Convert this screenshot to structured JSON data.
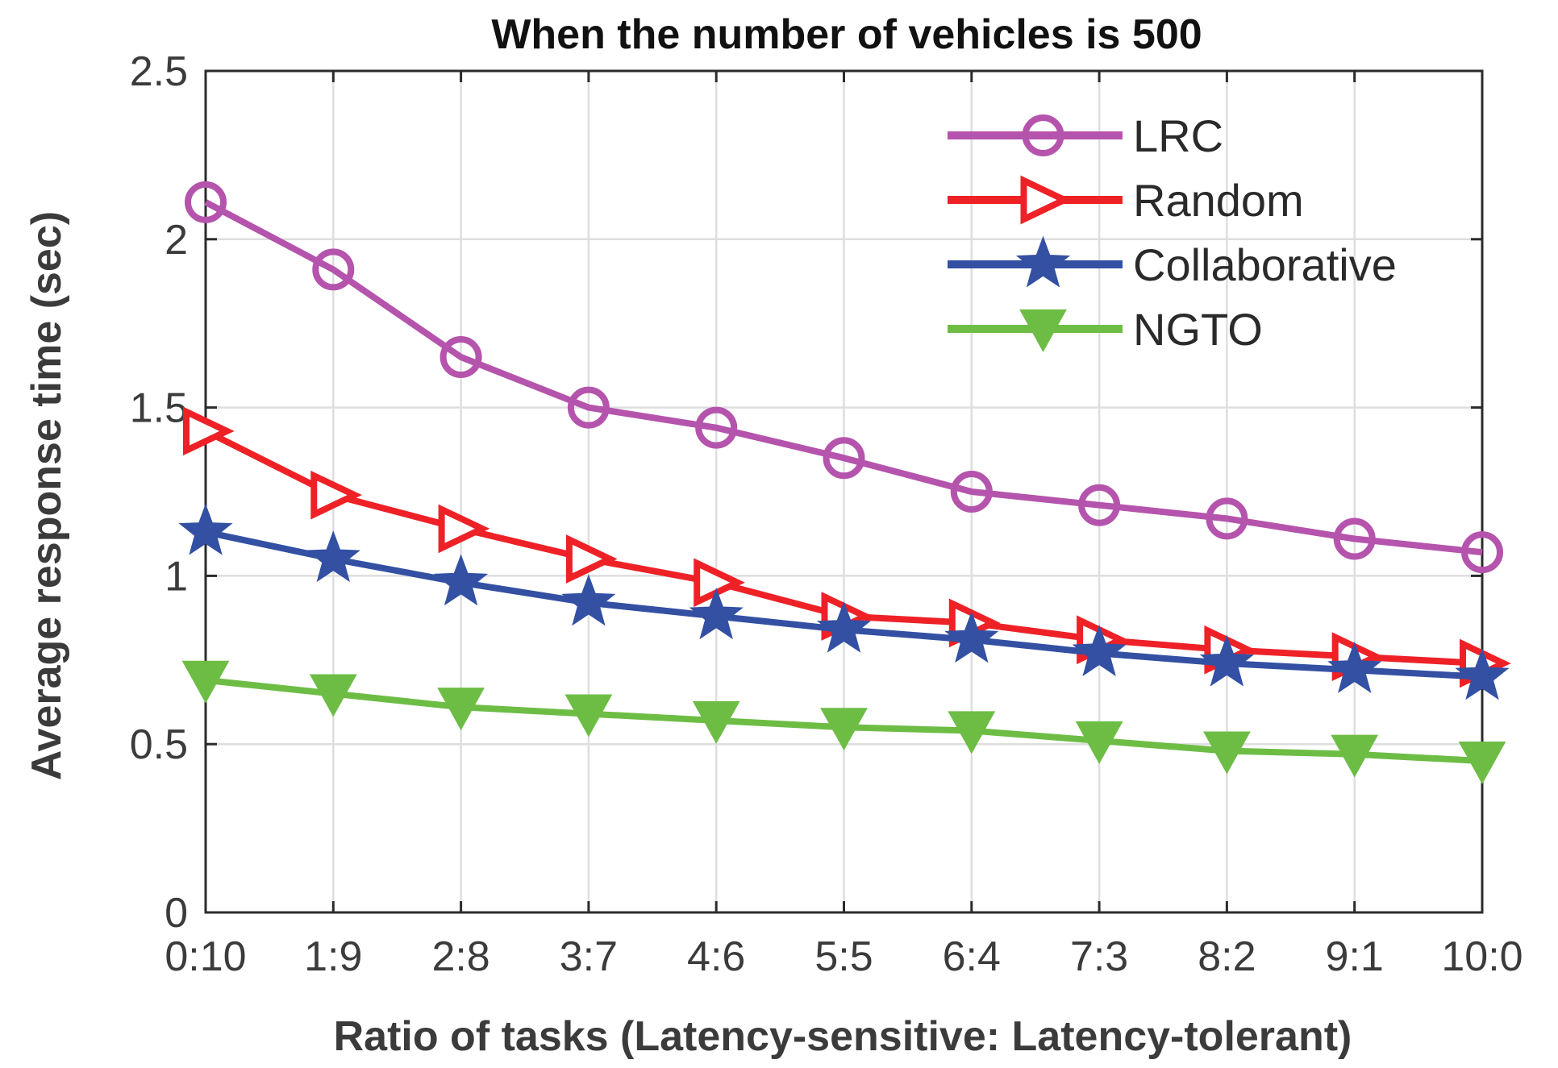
{
  "chart_data": {
    "type": "line",
    "title": "When the number of vehicles is 500",
    "xlabel": "Ratio of tasks (Latency-sensitive: Latency-tolerant)",
    "ylabel": "Average response time (sec)",
    "categories": [
      "0:10",
      "1:9",
      "2:8",
      "3:7",
      "4:6",
      "5:5",
      "6:4",
      "7:3",
      "8:2",
      "9:1",
      "10:0"
    ],
    "ylim": [
      0,
      2.5
    ],
    "yticks": [
      0,
      0.5,
      1,
      1.5,
      2,
      2.5
    ],
    "ytick_labels": [
      "0",
      "0.5",
      "1",
      "1.5",
      "2",
      "2.5"
    ],
    "grid": true,
    "legend_position": "top-right",
    "series": [
      {
        "name": "LRC",
        "color": "#b554ac",
        "marker": "circle",
        "values": [
          2.11,
          1.91,
          1.65,
          1.5,
          1.44,
          1.35,
          1.25,
          1.21,
          1.17,
          1.11,
          1.07
        ]
      },
      {
        "name": "Random",
        "color": "#ee2127",
        "marker": "triangle-right",
        "values": [
          1.43,
          1.24,
          1.14,
          1.05,
          0.98,
          0.88,
          0.86,
          0.81,
          0.78,
          0.76,
          0.74
        ]
      },
      {
        "name": "Collaborative",
        "color": "#3350a3",
        "marker": "star",
        "values": [
          1.13,
          1.05,
          0.98,
          0.92,
          0.88,
          0.84,
          0.81,
          0.77,
          0.74,
          0.72,
          0.7
        ]
      },
      {
        "name": "NGTO",
        "color": "#6dbd45",
        "marker": "triangle-down",
        "values": [
          0.69,
          0.65,
          0.61,
          0.59,
          0.57,
          0.55,
          0.54,
          0.51,
          0.48,
          0.47,
          0.45
        ]
      }
    ]
  }
}
